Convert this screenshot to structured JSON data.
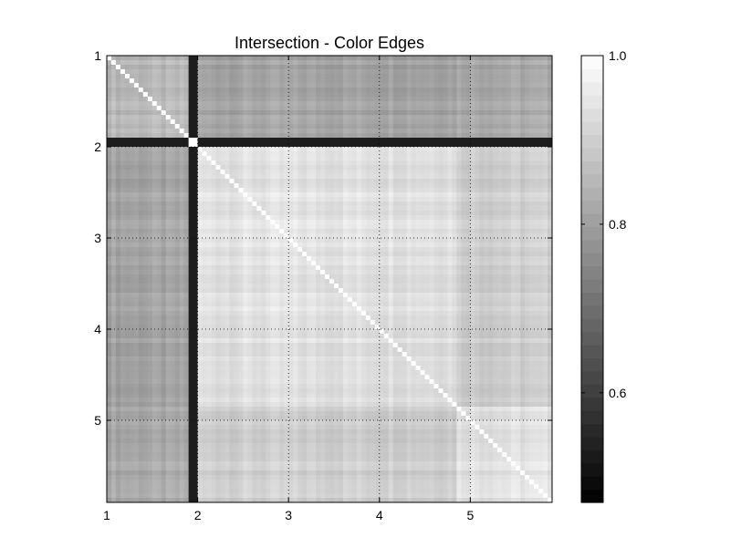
{
  "chart_data": {
    "type": "heatmap",
    "title": "Intersection - Color Edges",
    "xlabel": "",
    "ylabel": "",
    "colormap": "gray",
    "grid": true,
    "x_ticks": [
      "1",
      "2",
      "3",
      "4",
      "5"
    ],
    "y_ticks": [
      "1",
      "2",
      "3",
      "4",
      "5"
    ],
    "axis_range": [
      1,
      5.9
    ],
    "colorbar": {
      "range": [
        0.47,
        1.0
      ],
      "ticks": [
        "0.6",
        "0.8",
        "1.0"
      ],
      "tick_values": [
        0.6,
        0.8,
        1.0
      ]
    },
    "blocks": [
      {
        "from": 1.0,
        "to": 1.95
      },
      {
        "from": 1.95,
        "to": 4.85
      },
      {
        "from": 4.85,
        "to": 5.9
      }
    ],
    "block_values": [
      [
        0.85,
        0.81,
        0.82
      ],
      [
        0.81,
        0.94,
        0.9
      ],
      [
        0.82,
        0.9,
        0.94
      ]
    ],
    "low_similarity_index": 1.95,
    "low_similarity_value": 0.5
  }
}
